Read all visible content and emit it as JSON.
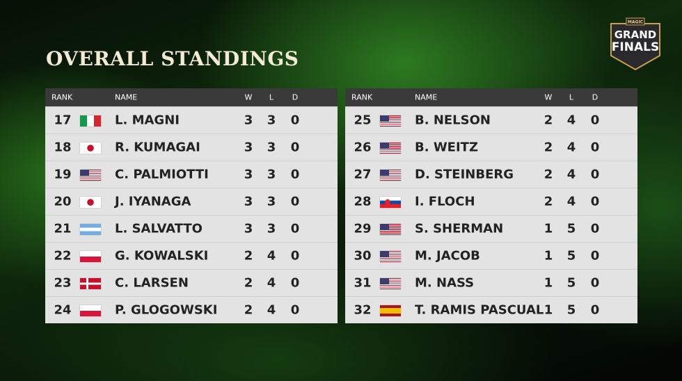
{
  "title": "OVERALL STANDINGS",
  "logo": {
    "brand": "MAGIC",
    "line1": "GRAND",
    "line2": "FINALS"
  },
  "tables": [
    {
      "headers": [
        "RANK",
        "NAME",
        "W",
        "L",
        "D"
      ],
      "rows": [
        [
          17,
          "L. MAGNI",
          3,
          3,
          0
        ],
        [
          18,
          "R. KUMAGAI",
          3,
          3,
          0
        ],
        [
          19,
          "C. PALMIOTTI",
          3,
          3,
          0
        ],
        [
          20,
          "J. IYANAGA",
          3,
          3,
          0
        ],
        [
          21,
          "L. SALVATTO",
          3,
          3,
          0
        ],
        [
          22,
          "G. KOWALSKI",
          2,
          4,
          0
        ],
        [
          23,
          "C. LARSEN",
          2,
          4,
          0
        ],
        [
          24,
          "P. GLOGOWSKI",
          2,
          4,
          0
        ]
      ]
    },
    {
      "headers": [
        "RANK",
        "NAME",
        "W",
        "L",
        "D"
      ],
      "rows": [
        [
          25,
          "B. NELSON",
          2,
          4,
          0
        ],
        [
          26,
          "B. WEITZ",
          2,
          4,
          0
        ],
        [
          27,
          "D. STEINBERG",
          2,
          4,
          0
        ],
        [
          28,
          "I. FLOCH",
          2,
          4,
          0
        ],
        [
          29,
          "S. SHERMAN",
          1,
          5,
          0
        ],
        [
          30,
          "M. JACOB",
          1,
          5,
          0
        ],
        [
          31,
          "M. NASS",
          1,
          5,
          0
        ],
        [
          32,
          "T. RAMIS PASCUAL",
          1,
          5,
          0
        ]
      ]
    }
  ]
}
